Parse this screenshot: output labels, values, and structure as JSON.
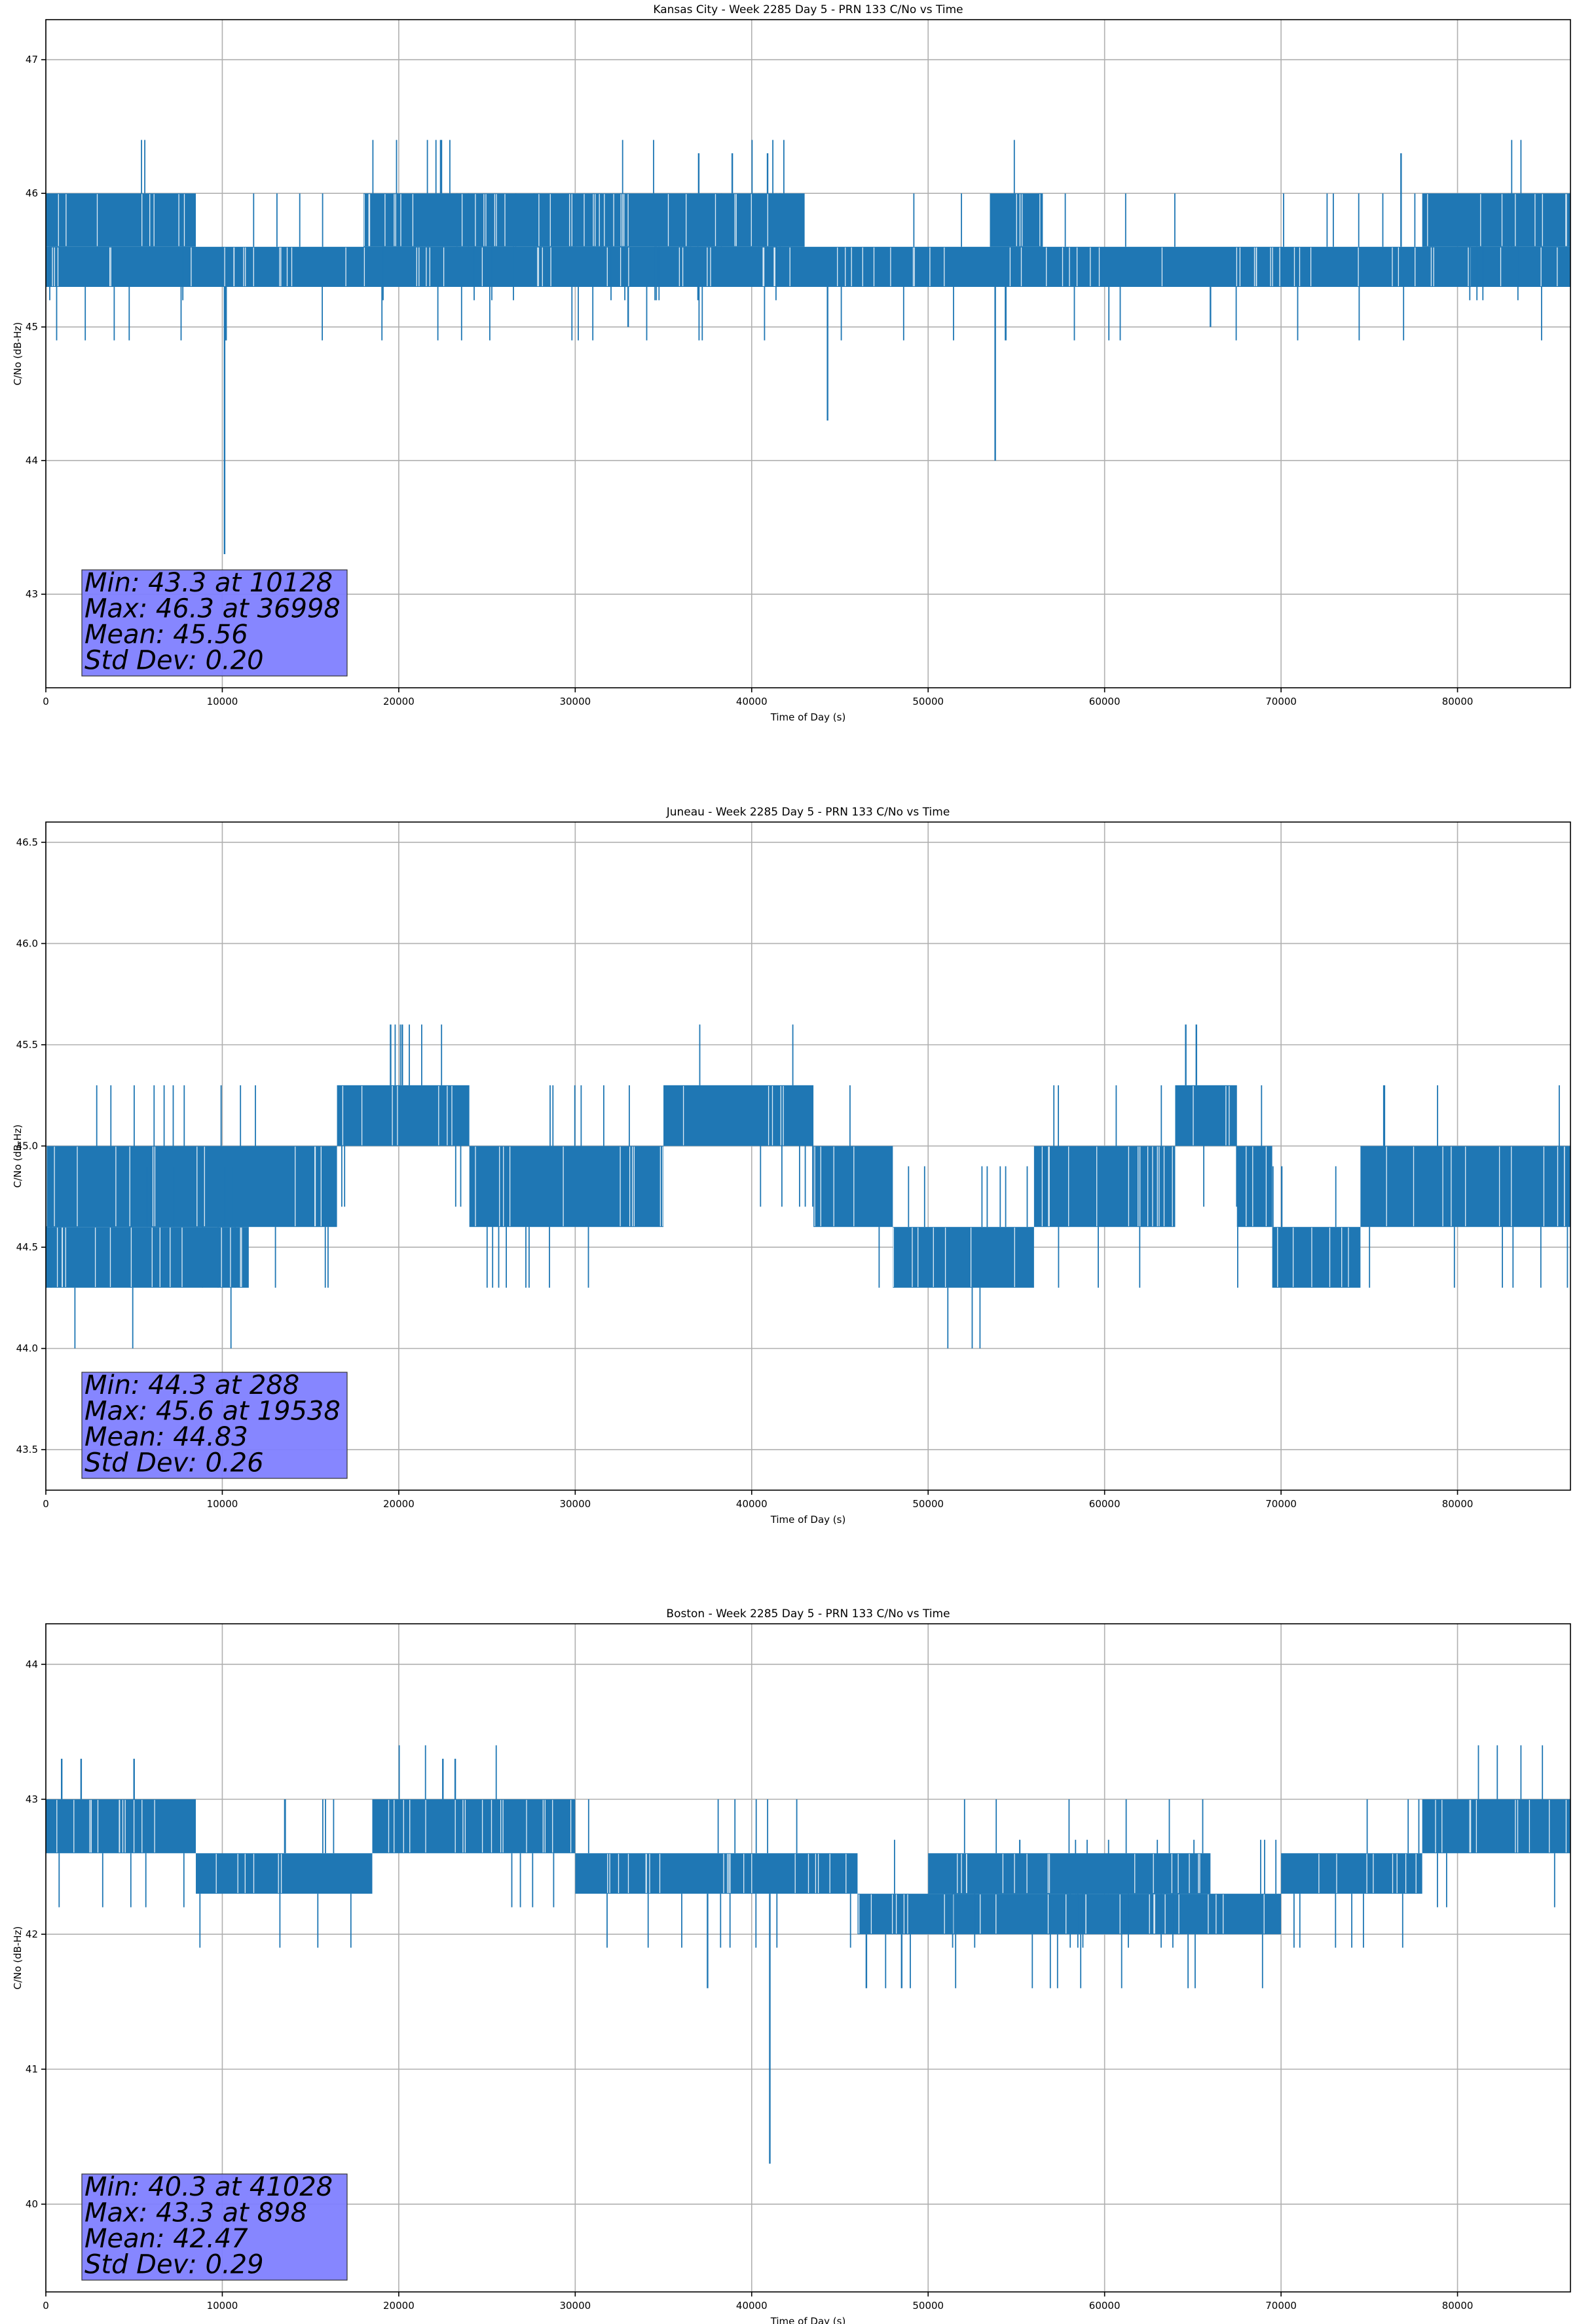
{
  "chart_data": [
    {
      "type": "line",
      "title": "Kansas City - Week 2285 Day 5 - PRN 133 C/No vs Time",
      "xlabel": "Time of Day (s)",
      "ylabel": "C/No (dB-Hz)",
      "xlim": [
        0,
        86400
      ],
      "ylim": [
        42.3,
        47.3
      ],
      "xticks": [
        0,
        10000,
        20000,
        30000,
        40000,
        50000,
        60000,
        70000,
        80000
      ],
      "yticks": [
        43,
        44,
        45,
        46,
        47
      ],
      "ytick_labels": [
        "43",
        "44",
        "45",
        "46",
        "47"
      ],
      "grid": true,
      "series_color": "#1f77b4",
      "series": [
        {
          "bands": [
            {
              "x": [
                0,
                86400
              ],
              "y": [
                45.3,
                45.6
              ]
            },
            {
              "x": [
                0,
                8500
              ],
              "y": [
                45.6,
                46.0
              ]
            },
            {
              "x": [
                18000,
                43000
              ],
              "y": [
                45.6,
                46.0
              ]
            },
            {
              "x": [
                53500,
                56500
              ],
              "y": [
                45.6,
                46.0
              ]
            },
            {
              "x": [
                78000,
                86400
              ],
              "y": [
                45.6,
                46.0
              ]
            }
          ],
          "spikes": [
            {
              "x": 10128,
              "y": 43.3
            },
            {
              "x": 10200,
              "y": 44.9
            },
            {
              "x": 36998,
              "y": 46.3
            },
            {
              "x": 38900,
              "y": 46.3
            },
            {
              "x": 40900,
              "y": 46.3
            },
            {
              "x": 44300,
              "y": 44.3
            },
            {
              "x": 53800,
              "y": 44.0
            },
            {
              "x": 76800,
              "y": 46.3
            },
            {
              "x": 33000,
              "y": 45.0
            },
            {
              "x": 66000,
              "y": 45.0
            }
          ]
        }
      ],
      "stats": {
        "min": "Min: 43.3 at 10128",
        "max": "Max: 46.3 at 36998",
        "mean": "Mean: 45.56",
        "std": "Std Dev: 0.20"
      },
      "stats_box_color": "#8080ff",
      "stats_box_location": "bottom-left"
    },
    {
      "type": "line",
      "title": "Juneau - Week 2285 Day 5 - PRN 133 C/No vs Time",
      "xlabel": "Time of Day (s)",
      "ylabel": "C/No (dB-Hz)",
      "xlim": [
        0,
        86400
      ],
      "ylim": [
        43.3,
        46.6
      ],
      "xticks": [
        0,
        10000,
        20000,
        30000,
        40000,
        50000,
        60000,
        70000,
        80000
      ],
      "yticks": [
        43.5,
        44.0,
        44.5,
        45.0,
        45.5,
        46.0,
        46.5
      ],
      "ytick_labels": [
        "43.5",
        "44.0",
        "44.5",
        "45.0",
        "45.5",
        "46.0",
        "46.5"
      ],
      "grid": true,
      "series_color": "#1f77b4",
      "series": [
        {
          "bands": [
            {
              "x": [
                0,
                16500
              ],
              "y": [
                44.6,
                45.0
              ]
            },
            {
              "x": [
                0,
                11500
              ],
              "y": [
                44.3,
                44.6
              ]
            },
            {
              "x": [
                16500,
                24000
              ],
              "y": [
                45.0,
                45.3
              ]
            },
            {
              "x": [
                24000,
                35000
              ],
              "y": [
                44.6,
                45.0
              ]
            },
            {
              "x": [
                35000,
                43500
              ],
              "y": [
                45.0,
                45.3
              ]
            },
            {
              "x": [
                43500,
                48000
              ],
              "y": [
                44.6,
                45.0
              ]
            },
            {
              "x": [
                48000,
                56000
              ],
              "y": [
                44.3,
                44.6
              ]
            },
            {
              "x": [
                56000,
                64000
              ],
              "y": [
                44.6,
                45.0
              ]
            },
            {
              "x": [
                64000,
                67500
              ],
              "y": [
                45.0,
                45.3
              ]
            },
            {
              "x": [
                67500,
                69500
              ],
              "y": [
                44.6,
                45.0
              ]
            },
            {
              "x": [
                69500,
                74500
              ],
              "y": [
                44.3,
                44.6
              ]
            },
            {
              "x": [
                74500,
                86400
              ],
              "y": [
                44.6,
                45.0
              ]
            }
          ],
          "spikes": [
            {
              "x": 19538,
              "y": 45.6
            },
            {
              "x": 20200,
              "y": 45.6
            },
            {
              "x": 64600,
              "y": 45.6
            },
            {
              "x": 65200,
              "y": 45.6
            },
            {
              "x": 288,
              "y": 44.3
            }
          ]
        }
      ],
      "stats": {
        "min": "Min: 44.3 at 288",
        "max": "Max: 45.6 at 19538",
        "mean": "Mean: 44.83",
        "std": "Std Dev: 0.26"
      },
      "stats_box_color": "#8080ff",
      "stats_box_location": "bottom-left"
    },
    {
      "type": "line",
      "title": "Boston - Week 2285 Day 5 - PRN 133 C/No vs Time",
      "xlabel": "Time of Day (s)",
      "ylabel": "C/No (dB-Hz)",
      "xlim": [
        0,
        86400
      ],
      "ylim": [
        39.35,
        44.3
      ],
      "xticks": [
        0,
        10000,
        20000,
        30000,
        40000,
        50000,
        60000,
        70000,
        80000
      ],
      "yticks": [
        40,
        41,
        42,
        43,
        44
      ],
      "ytick_labels": [
        "40",
        "41",
        "42",
        "43",
        "44"
      ],
      "grid": true,
      "series_color": "#1f77b4",
      "series": [
        {
          "bands": [
            {
              "x": [
                0,
                8500
              ],
              "y": [
                42.6,
                43.0
              ]
            },
            {
              "x": [
                8500,
                18500
              ],
              "y": [
                42.3,
                42.6
              ]
            },
            {
              "x": [
                18500,
                30000
              ],
              "y": [
                42.6,
                43.0
              ]
            },
            {
              "x": [
                30000,
                46000
              ],
              "y": [
                42.3,
                42.6
              ]
            },
            {
              "x": [
                46000,
                70000
              ],
              "y": [
                42.0,
                42.3
              ]
            },
            {
              "x": [
                50000,
                66000
              ],
              "y": [
                42.3,
                42.6
              ]
            },
            {
              "x": [
                70000,
                78000
              ],
              "y": [
                42.3,
                42.6
              ]
            },
            {
              "x": [
                78000,
                86400
              ],
              "y": [
                42.6,
                43.0
              ]
            }
          ],
          "spikes": [
            {
              "x": 898,
              "y": 43.3
            },
            {
              "x": 2000,
              "y": 43.3
            },
            {
              "x": 5000,
              "y": 43.3
            },
            {
              "x": 22500,
              "y": 43.3
            },
            {
              "x": 23200,
              "y": 43.3
            },
            {
              "x": 41028,
              "y": 40.3
            },
            {
              "x": 37500,
              "y": 41.6
            },
            {
              "x": 46500,
              "y": 41.6
            },
            {
              "x": 48500,
              "y": 41.6
            }
          ]
        }
      ],
      "stats": {
        "min": "Min: 40.3 at 41028",
        "max": "Max: 43.3 at 898",
        "mean": "Mean: 42.47",
        "std": "Std Dev: 0.29"
      },
      "stats_box_color": "#8080ff",
      "stats_box_location": "bottom-left"
    }
  ]
}
